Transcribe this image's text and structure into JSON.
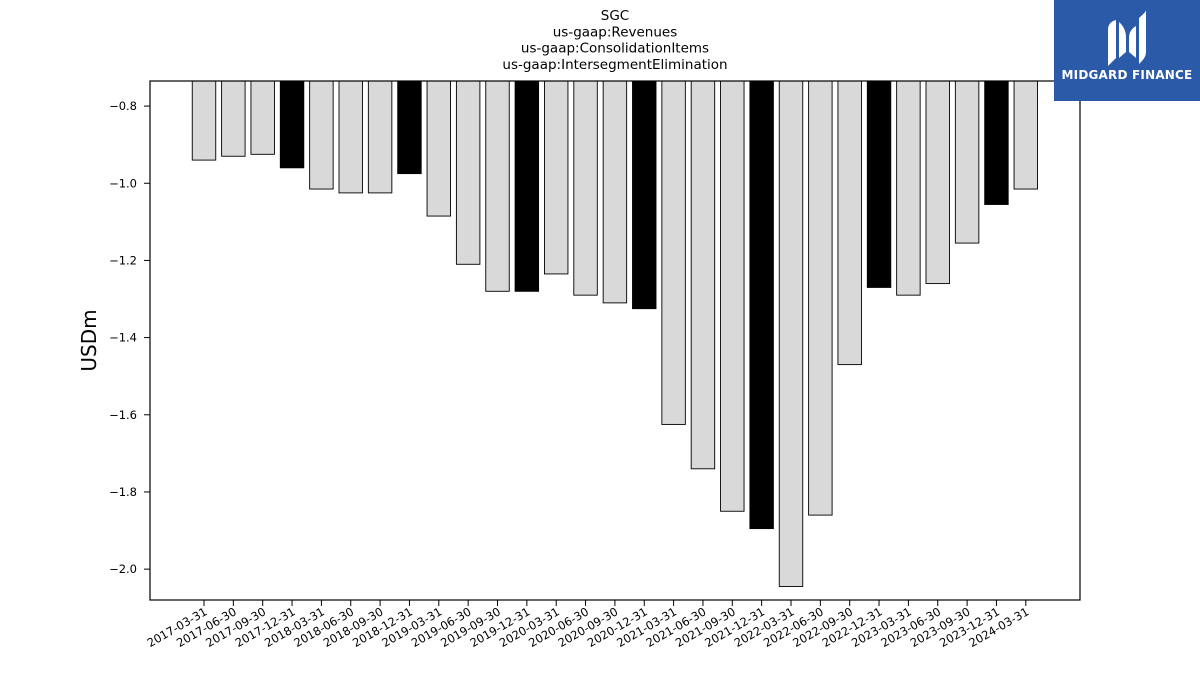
{
  "brand": {
    "name": "MIDGARD FINANCE",
    "bg_color": "#2b5aa8"
  },
  "chart_data": {
    "type": "bar",
    "title": [
      "SGC",
      "us-gaap:Revenues",
      "us-gaap:ConsolidationItems",
      "us-gaap:IntersegmentElimination"
    ],
    "xlabel": "",
    "ylabel": "USDm",
    "ylim": [
      -2.08,
      -0.735
    ],
    "yticks": [
      -0.8,
      -1.0,
      -1.2,
      -1.4,
      -1.6,
      -1.8,
      -2.0
    ],
    "ytick_labels": [
      "−0.8",
      "−1.0",
      "−1.2",
      "−1.4",
      "−1.6",
      "−1.8",
      "−2.0"
    ],
    "grid": false,
    "categories": [
      "2017-03-31",
      "2017-06-30",
      "2017-09-30",
      "2017-12-31",
      "2018-03-31",
      "2018-06-30",
      "2018-09-30",
      "2018-12-31",
      "2019-03-31",
      "2019-06-30",
      "2019-09-30",
      "2019-12-31",
      "2020-03-31",
      "2020-06-30",
      "2020-09-30",
      "2020-12-31",
      "2021-03-31",
      "2021-06-30",
      "2021-09-30",
      "2021-12-31",
      "2022-03-31",
      "2022-06-30",
      "2022-09-30",
      "2022-12-31",
      "2023-03-31",
      "2023-06-30",
      "2023-09-30",
      "2023-12-31",
      "2024-03-31"
    ],
    "values": [
      -0.94,
      -0.93,
      -0.925,
      -0.96,
      -1.015,
      -1.025,
      -1.025,
      -0.975,
      -1.085,
      -1.21,
      -1.28,
      -1.28,
      -1.235,
      -1.29,
      -1.31,
      -1.325,
      -1.625,
      -1.74,
      -1.85,
      -1.895,
      -2.045,
      -1.86,
      -1.47,
      -1.27,
      -1.29,
      -1.26,
      -1.155,
      -1.055,
      -1.015
    ],
    "bar_colors": {
      "quarter": "#d9d9d9",
      "year_end": "#000000",
      "edge": "#000000"
    }
  }
}
